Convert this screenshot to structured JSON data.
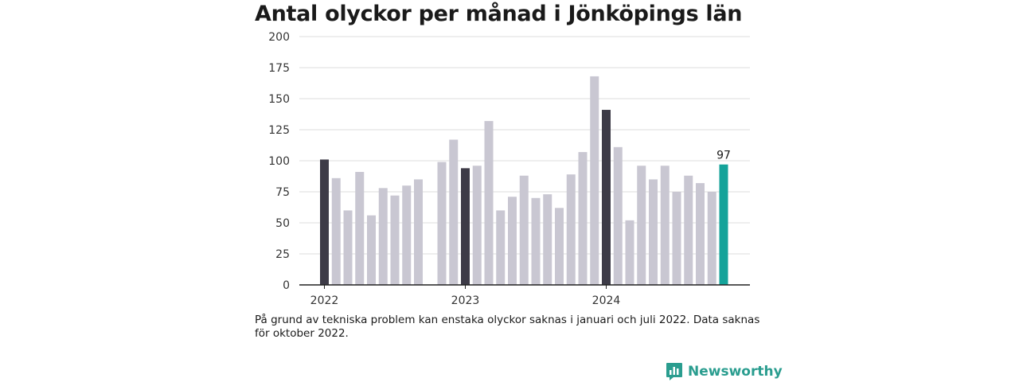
{
  "title": "Antal olyckor per månad i Jönköpings län",
  "note": "På grund av tekniska problem kan enstaka olyckor saknas i januari och juli 2022. Data saknas för oktober 2022.",
  "brand": {
    "name": "Newsworthy",
    "icon": "bar-chart-bubble-icon"
  },
  "colors": {
    "default": "#c9c7d2",
    "january": "#3d3b47",
    "latest": "#14a39a",
    "axis": "#222222",
    "grid": "#dcdcdc"
  },
  "chart_data": {
    "type": "bar",
    "title": "Antal olyckor per månad i Jönköpings län",
    "xlabel": "",
    "ylabel": "",
    "ylim": [
      0,
      200
    ],
    "yticks": [
      0,
      25,
      50,
      75,
      100,
      125,
      150,
      175,
      200
    ],
    "year_labels": [
      "2022",
      "2023",
      "2024"
    ],
    "categories": [
      "2022-01",
      "2022-02",
      "2022-03",
      "2022-04",
      "2022-05",
      "2022-06",
      "2022-07",
      "2022-08",
      "2022-09",
      "2022-10",
      "2022-11",
      "2022-12",
      "2023-01",
      "2023-02",
      "2023-03",
      "2023-04",
      "2023-05",
      "2023-06",
      "2023-07",
      "2023-08",
      "2023-09",
      "2023-10",
      "2023-11",
      "2023-12",
      "2024-01",
      "2024-02",
      "2024-03",
      "2024-04",
      "2024-05",
      "2024-06",
      "2024-07",
      "2024-08",
      "2024-09",
      "2024-10",
      "2024-11"
    ],
    "values": [
      101,
      86,
      60,
      91,
      56,
      78,
      72,
      80,
      85,
      null,
      99,
      117,
      94,
      96,
      132,
      60,
      71,
      88,
      70,
      73,
      62,
      89,
      107,
      168,
      141,
      111,
      52,
      96,
      85,
      96,
      75,
      88,
      82,
      75,
      97
    ],
    "highlight_label": "97",
    "grid": true
  }
}
